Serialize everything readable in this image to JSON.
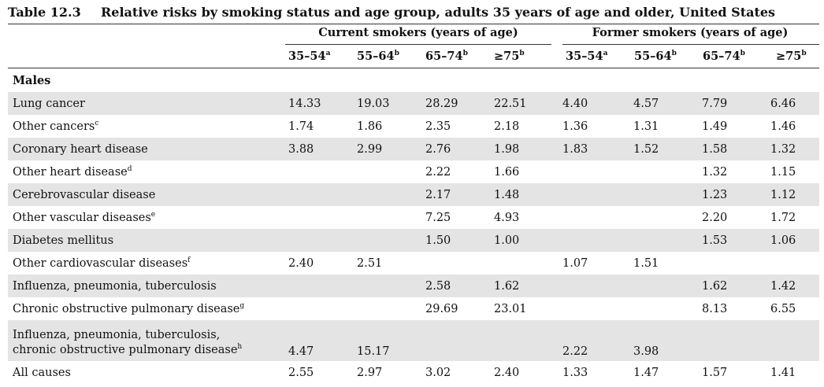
{
  "title": {
    "number": "Table 12.3",
    "text": "Relative risks by smoking status and age group, adults 35 years of age and older, United States"
  },
  "groups": {
    "current": "Current smokers (years of age)",
    "former": "Former smokers (years of age)"
  },
  "columns": [
    {
      "label": "35–54",
      "note": "a"
    },
    {
      "label": "55–64",
      "note": "b"
    },
    {
      "label": "65–74",
      "note": "b"
    },
    {
      "label": "≥75",
      "note": "b"
    },
    {
      "label": "35–54",
      "note": "a"
    },
    {
      "label": "55–64",
      "note": "b"
    },
    {
      "label": "65–74",
      "note": "b"
    },
    {
      "label": "≥75",
      "note": "b"
    }
  ],
  "section": "Males",
  "rows": [
    {
      "label": "Lung cancer",
      "note": "",
      "values": [
        "14.33",
        "19.03",
        "28.29",
        "22.51",
        "4.40",
        "4.57",
        "7.79",
        "6.46"
      ]
    },
    {
      "label": "Other cancers",
      "note": "c",
      "values": [
        "1.74",
        "1.86",
        "2.35",
        "2.18",
        "1.36",
        "1.31",
        "1.49",
        "1.46"
      ]
    },
    {
      "label": "Coronary heart disease",
      "note": "",
      "values": [
        "3.88",
        "2.99",
        "2.76",
        "1.98",
        "1.83",
        "1.52",
        "1.58",
        "1.32"
      ]
    },
    {
      "label": "Other heart disease",
      "note": "d",
      "values": [
        "",
        "",
        "2.22",
        "1.66",
        "",
        "",
        "1.32",
        "1.15"
      ]
    },
    {
      "label": "Cerebrovascular disease",
      "note": "",
      "values": [
        "",
        "",
        "2.17",
        "1.48",
        "",
        "",
        "1.23",
        "1.12"
      ]
    },
    {
      "label": "Other vascular diseases",
      "note": "e",
      "values": [
        "",
        "",
        "7.25",
        "4.93",
        "",
        "",
        "2.20",
        "1.72"
      ]
    },
    {
      "label": "Diabetes mellitus",
      "note": "",
      "values": [
        "",
        "",
        "1.50",
        "1.00",
        "",
        "",
        "1.53",
        "1.06"
      ]
    },
    {
      "label": "Other cardiovascular diseases",
      "note": "f",
      "values": [
        "2.40",
        "2.51",
        "",
        "",
        "1.07",
        "1.51",
        "",
        ""
      ]
    },
    {
      "label": "Influenza, pneumonia, tuberculosis",
      "note": "",
      "values": [
        "",
        "",
        "2.58",
        "1.62",
        "",
        "",
        "1.62",
        "1.42"
      ]
    },
    {
      "label": "Chronic obstructive pulmonary disease",
      "note": "g",
      "values": [
        "",
        "",
        "29.69",
        "23.01",
        "",
        "",
        "8.13",
        "6.55"
      ]
    },
    {
      "label": "Influenza, pneumonia, tuberculosis,",
      "label2": "chronic obstructive pulmonary disease",
      "note": "h",
      "values": [
        "4.47",
        "15.17",
        "",
        "",
        "2.22",
        "3.98",
        "",
        ""
      ]
    },
    {
      "label": "All causes",
      "note": "",
      "values": [
        "2.55",
        "2.97",
        "3.02",
        "2.40",
        "1.33",
        "1.47",
        "1.57",
        "1.41"
      ]
    }
  ]
}
